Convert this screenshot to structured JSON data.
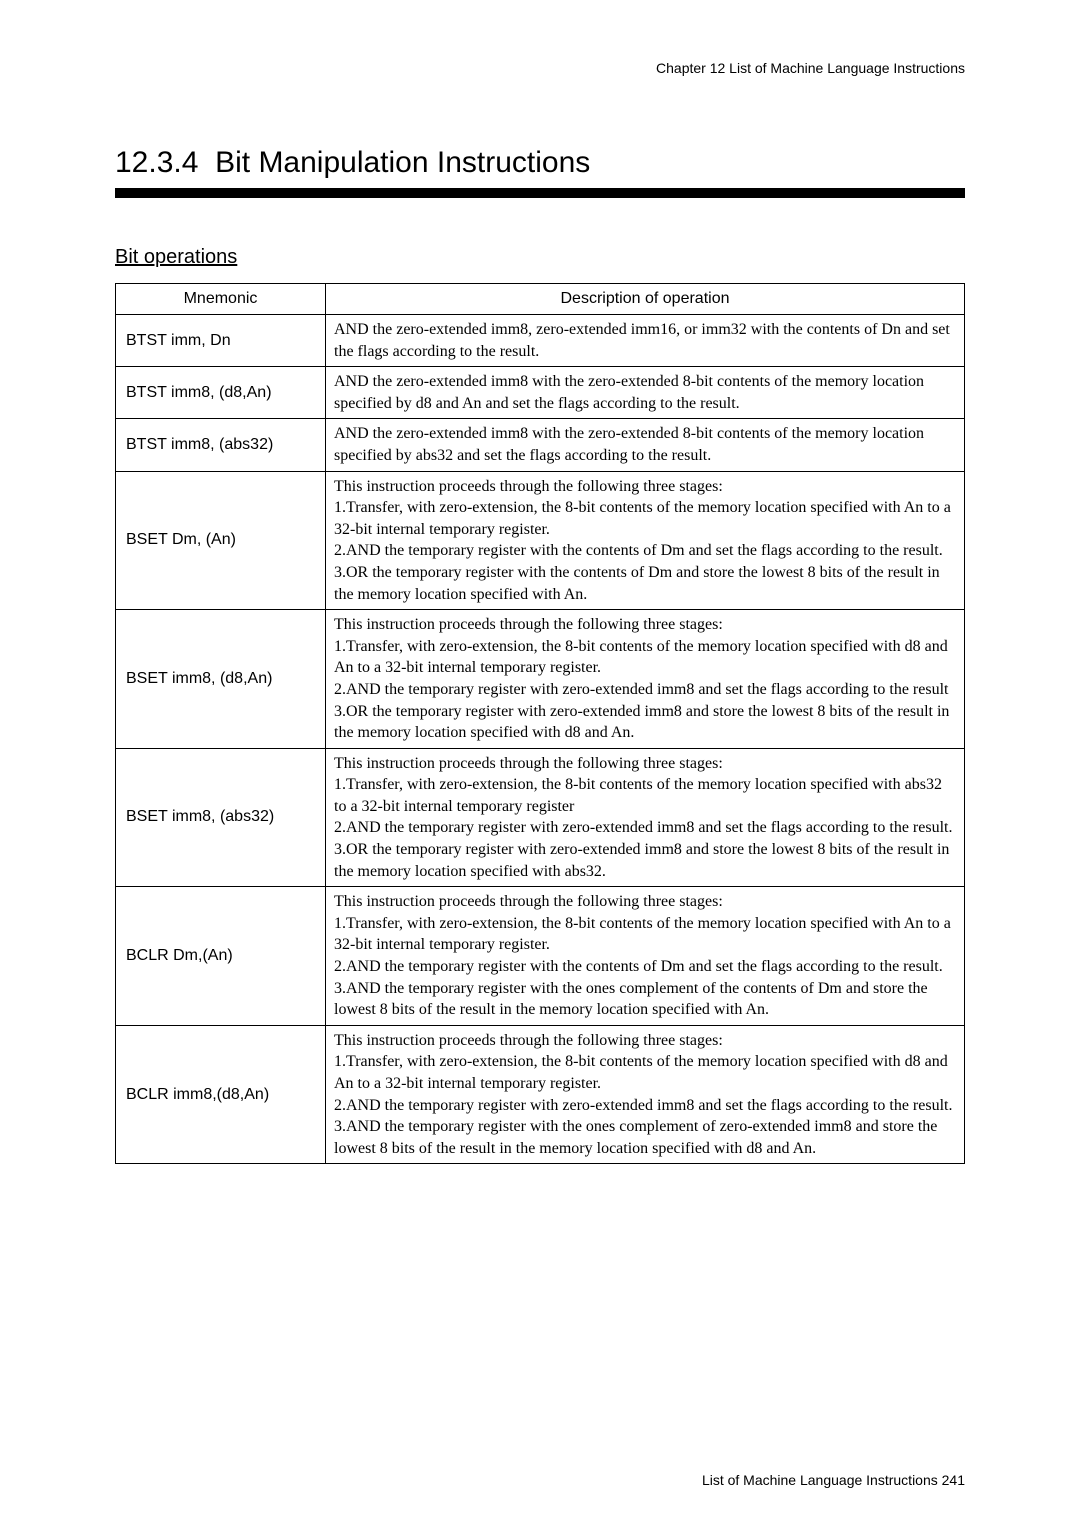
{
  "header": {
    "chapter": "Chapter 12   List of Machine Language Instructions"
  },
  "section": {
    "number": "12.3.4",
    "title": "Bit Manipulation Instructions"
  },
  "subtitle": "Bit operations",
  "table": {
    "headers": {
      "mnemonic": "Mnemonic",
      "description": "Description of operation"
    },
    "rows": [
      {
        "mnemonic": "BTST imm, Dn",
        "description": "AND the zero-extended imm8, zero-extended imm16, or imm32 with the contents of Dn and set the flags according to the result."
      },
      {
        "mnemonic": "BTST imm8, (d8,An)",
        "description": "AND the zero-extended imm8 with the zero-extended 8-bit contents of the memory location specified by d8 and An and set the flags according to the result."
      },
      {
        "mnemonic": "BTST imm8, (abs32)",
        "description": "AND the zero-extended imm8 with the zero-extended 8-bit contents of the memory location specified by abs32 and set the flags according to the result."
      },
      {
        "mnemonic": "BSET Dm, (An)",
        "description": "This instruction proceeds through the following three stages:\n1.Transfer, with zero-extension, the 8-bit contents of the memory location specified with An to a 32-bit internal temporary register.\n2.AND the temporary register with the contents of Dm and set the flags according to the result.\n3.OR the temporary register with the contents of Dm and store the lowest 8 bits of the result in the memory location specified with An."
      },
      {
        "mnemonic": "BSET imm8, (d8,An)",
        "description": "This instruction proceeds through the following three stages:\n1.Transfer, with zero-extension, the 8-bit contents of the memory location specified with d8 and An to a 32-bit internal temporary register.\n2.AND the temporary register with zero-extended imm8 and set the flags according to the result\n3.OR the temporary register with zero-extended imm8 and store the lowest 8 bits of the result in the memory location specified with d8 and An."
      },
      {
        "mnemonic": "BSET imm8, (abs32)",
        "description": "This instruction proceeds through the following three stages:\n1.Transfer, with zero-extension, the 8-bit contents of the memory location specified with abs32 to a 32-bit internal temporary register\n2.AND the temporary register with zero-extended imm8 and set the flags according to the result.\n3.OR the temporary register with zero-extended imm8 and store the lowest 8 bits of the result in the memory location specified with abs32."
      },
      {
        "mnemonic": "BCLR Dm,(An)",
        "description": "This instruction proceeds through the following three stages:\n1.Transfer, with zero-extension, the 8-bit contents of the memory location specified with An to a 32-bit internal temporary register.\n2.AND the temporary register with the contents of Dm and set the flags according to the result.\n3.AND the temporary register with the ones complement of the contents of Dm and store the lowest 8 bits of the result in the memory location specified with An."
      },
      {
        "mnemonic": "BCLR imm8,(d8,An)",
        "description": "This instruction proceeds through the following three stages:\n1.Transfer, with zero-extension, the 8-bit contents of the memory location specified with d8 and An to a 32-bit internal temporary register.\n2.AND the temporary register with zero-extended imm8 and set the flags according to the result.\n3.AND the temporary register with the ones complement of zero-extended imm8 and store the lowest 8 bits of the result in the memory location specified with d8 and An."
      }
    ]
  },
  "footer": {
    "text": "List of Machine Language Instructions  241"
  },
  "colors": {
    "text": "#000000",
    "background": "#ffffff",
    "border": "#000000"
  }
}
